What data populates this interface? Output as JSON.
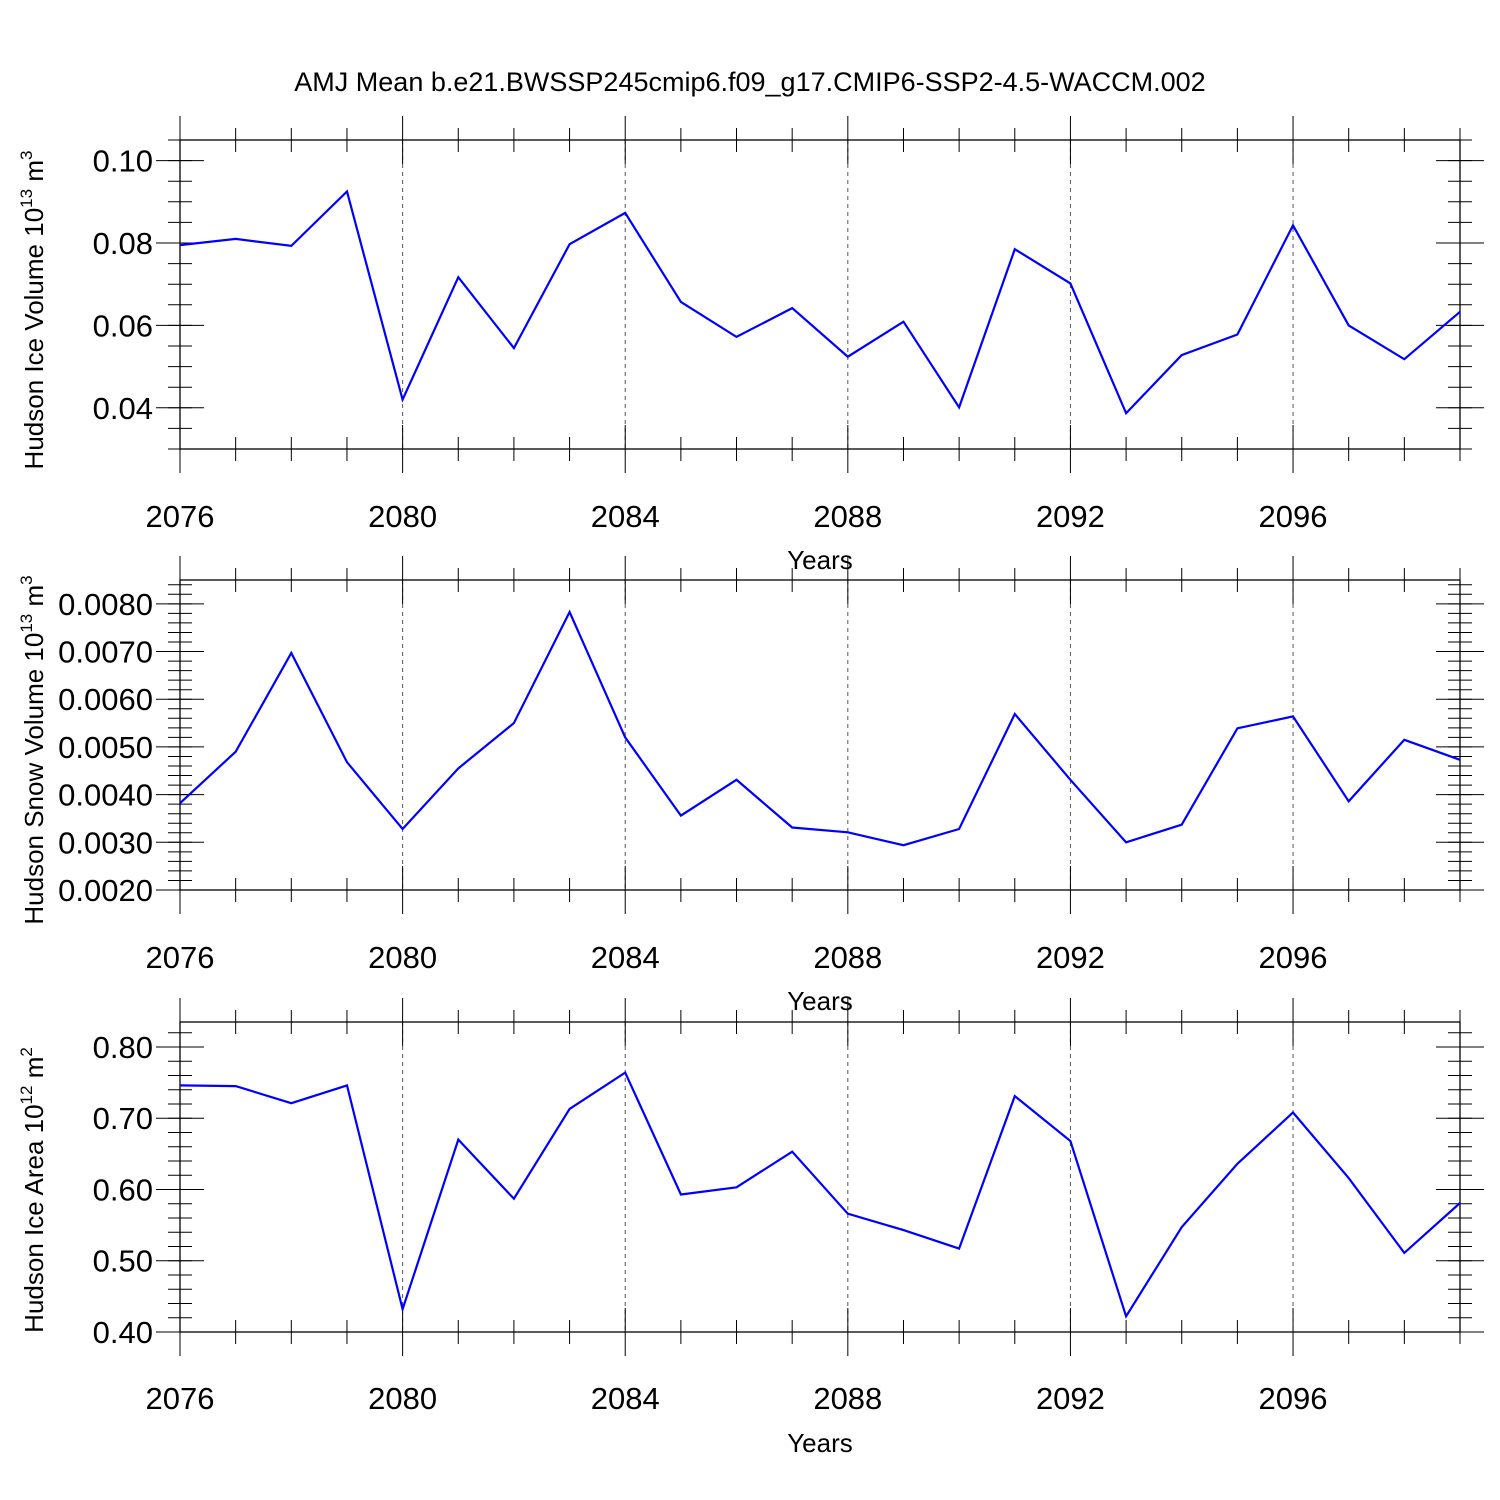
{
  "title": "AMJ Mean b.e21.BWSSP245cmip6.f09_g17.CMIP6-SSP2-4.5-WACCM.002",
  "colors": {
    "line": "#0000ff",
    "axis": "#000000",
    "grid": "#555555"
  },
  "chart_data": [
    {
      "type": "line",
      "ylabel": "Hudson Ice Volume 10",
      "ylabel_sup": "13",
      "ylabel_unit": " m",
      "ylabel_unit_sup": "3",
      "xlabel": "Years",
      "xlim": [
        2076,
        2099
      ],
      "ylim": [
        0.03,
        0.105
      ],
      "xticks": [
        2076,
        2080,
        2084,
        2088,
        2092,
        2096
      ],
      "xtick_labels": [
        "2076",
        "2080",
        "2084",
        "2088",
        "2092",
        "2096"
      ],
      "yticks": [
        0.04,
        0.06,
        0.08,
        0.1
      ],
      "ytick_labels": [
        "0.04",
        "0.06",
        "0.08",
        "0.10"
      ],
      "yminor": 0.005,
      "grid": "vertical dashed at major x ticks",
      "x": [
        2076,
        2077,
        2078,
        2079,
        2080,
        2081,
        2082,
        2083,
        2084,
        2085,
        2086,
        2087,
        2088,
        2089,
        2090,
        2091,
        2092,
        2093,
        2094,
        2095,
        2096,
        2097,
        2098,
        2099
      ],
      "y": [
        0.0795,
        0.081,
        0.0793,
        0.0925,
        0.042,
        0.0717,
        0.0545,
        0.0797,
        0.0873,
        0.0657,
        0.0572,
        0.0642,
        0.0524,
        0.0609,
        0.0401,
        0.0785,
        0.0702,
        0.0387,
        0.0528,
        0.0578,
        0.0843,
        0.06,
        0.0518,
        0.0633
      ]
    },
    {
      "type": "line",
      "ylabel": "Hudson Snow Volume 10",
      "ylabel_sup": "13",
      "ylabel_unit": " m",
      "ylabel_unit_sup": "3",
      "xlabel": "Years",
      "xlim": [
        2076,
        2099
      ],
      "ylim": [
        0.002,
        0.0085
      ],
      "xticks": [
        2076,
        2080,
        2084,
        2088,
        2092,
        2096
      ],
      "xtick_labels": [
        "2076",
        "2080",
        "2084",
        "2088",
        "2092",
        "2096"
      ],
      "yticks": [
        0.002,
        0.003,
        0.004,
        0.005,
        0.006,
        0.007,
        0.008
      ],
      "ytick_labels": [
        "0.0020",
        "0.0030",
        "0.0040",
        "0.0050",
        "0.0060",
        "0.0070",
        "0.0080"
      ],
      "yminor": 0.0002,
      "grid": "vertical dashed at major x ticks",
      "x": [
        2076,
        2077,
        2078,
        2079,
        2080,
        2081,
        2082,
        2083,
        2084,
        2085,
        2086,
        2087,
        2088,
        2089,
        2090,
        2091,
        2092,
        2093,
        2094,
        2095,
        2096,
        2097,
        2098,
        2099
      ],
      "y": [
        0.00382,
        0.0049,
        0.00697,
        0.00468,
        0.00328,
        0.00455,
        0.0055,
        0.00783,
        0.0052,
        0.00356,
        0.00431,
        0.00331,
        0.00321,
        0.00294,
        0.00328,
        0.00569,
        0.00431,
        0.003,
        0.00337,
        0.00539,
        0.00564,
        0.00386,
        0.00515,
        0.00473
      ]
    },
    {
      "type": "line",
      "ylabel": "Hudson Ice Area 10",
      "ylabel_sup": "12",
      "ylabel_unit": " m",
      "ylabel_unit_sup": "2",
      "xlabel": "Years",
      "xlim": [
        2076,
        2099
      ],
      "ylim": [
        0.4,
        0.835
      ],
      "xticks": [
        2076,
        2080,
        2084,
        2088,
        2092,
        2096
      ],
      "xtick_labels": [
        "2076",
        "2080",
        "2084",
        "2088",
        "2092",
        "2096"
      ],
      "yticks": [
        0.4,
        0.5,
        0.6,
        0.7,
        0.8
      ],
      "ytick_labels": [
        "0.40",
        "0.50",
        "0.60",
        "0.70",
        "0.80"
      ],
      "yminor": 0.02,
      "grid": "vertical dashed at major x ticks",
      "x": [
        2076,
        2077,
        2078,
        2079,
        2080,
        2081,
        2082,
        2083,
        2084,
        2085,
        2086,
        2087,
        2088,
        2089,
        2090,
        2091,
        2092,
        2093,
        2094,
        2095,
        2096,
        2097,
        2098,
        2099
      ],
      "y": [
        0.746,
        0.745,
        0.721,
        0.746,
        0.432,
        0.67,
        0.587,
        0.713,
        0.764,
        0.593,
        0.603,
        0.653,
        0.566,
        0.543,
        0.517,
        0.731,
        0.668,
        0.422,
        0.547,
        0.636,
        0.708,
        0.616,
        0.511,
        0.581
      ]
    }
  ]
}
